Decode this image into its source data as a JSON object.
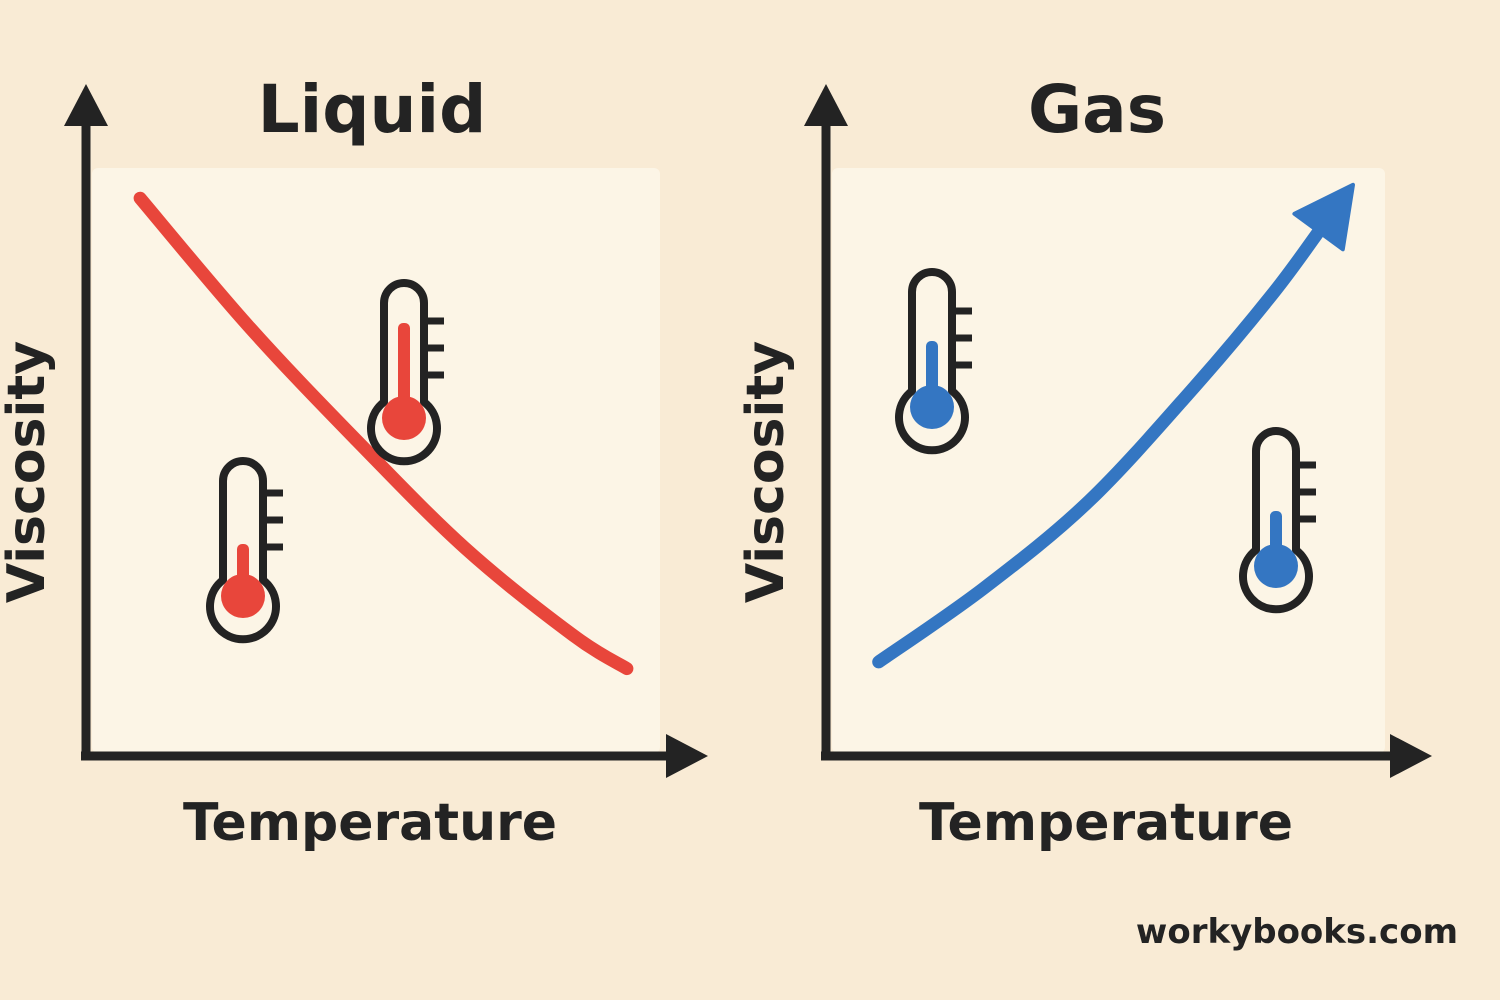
{
  "colors": {
    "background": "#f9ebd5",
    "panel": "#fcf5e6",
    "axis": "#232323",
    "liquid_curve": "#e8463b",
    "gas_curve": "#3476c2"
  },
  "chart_data": [
    {
      "type": "line",
      "title": "Liquid",
      "xlabel": "Temperature",
      "ylabel": "Viscosity",
      "trend": "decreasing",
      "series": [
        {
          "color": "#e8463b",
          "x": [
            0.1,
            0.3,
            0.5,
            0.7,
            0.9,
            1.0
          ],
          "values": [
            0.83,
            0.64,
            0.47,
            0.31,
            0.18,
            0.13
          ]
        }
      ],
      "xlim": [
        0,
        1.15
      ],
      "ylim": [
        0,
        1.0
      ],
      "grid": false,
      "arrow_end": false,
      "icons": [
        "thermometer-icon",
        "thermometer-icon"
      ]
    },
    {
      "type": "line",
      "title": "Gas",
      "xlabel": "Temperature",
      "ylabel": "Viscosity",
      "trend": "increasing",
      "series": [
        {
          "color": "#3476c2",
          "x": [
            0.1,
            0.3,
            0.5,
            0.7,
            0.85,
            1.0
          ],
          "values": [
            0.14,
            0.25,
            0.38,
            0.55,
            0.69,
            0.85
          ]
        }
      ],
      "xlim": [
        0,
        1.15
      ],
      "ylim": [
        0,
        1.0
      ],
      "grid": false,
      "arrow_end": true,
      "icons": [
        "thermometer-icon",
        "thermometer-icon"
      ]
    }
  ],
  "footer": {
    "watermark": "workybooks.com"
  }
}
